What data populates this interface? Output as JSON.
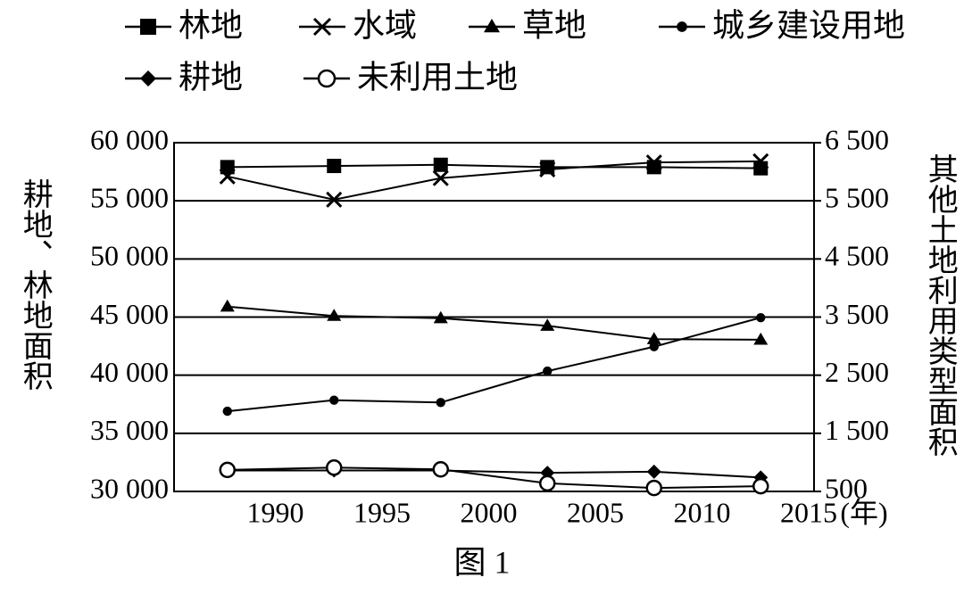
{
  "chart_data": {
    "type": "line",
    "title": "图 1",
    "x_label": "(年)",
    "y_label": "耕地、林地面积",
    "y2_label": "其他土地利用类型面积",
    "x": [
      1987.5,
      1992.5,
      1997.5,
      2002.5,
      2007.5,
      2012.5
    ],
    "xlim": [
      1985,
      2015
    ],
    "xticks": [
      1990,
      1995,
      2000,
      2005,
      2010,
      2015
    ],
    "ylim": [
      30000,
      60000
    ],
    "yticks": [
      {
        "value": 30000,
        "label": "30 000"
      },
      {
        "value": 35000,
        "label": "35 000"
      },
      {
        "value": 40000,
        "label": "40 000"
      },
      {
        "value": 45000,
        "label": "45 000"
      },
      {
        "value": 50000,
        "label": "50 000"
      },
      {
        "value": 55000,
        "label": "55 000"
      },
      {
        "value": 60000,
        "label": "60 000"
      }
    ],
    "y2lim": [
      500,
      6500
    ],
    "y2ticks": [
      500,
      {
        "value": 1500,
        "label": "1 500"
      },
      {
        "value": 2500,
        "label": "2 500"
      },
      {
        "value": 3500,
        "label": "3 500"
      },
      {
        "value": 4500,
        "label": "4 500"
      },
      {
        "value": 5500,
        "label": "5 500"
      },
      {
        "value": 6500,
        "label": "6 500"
      }
    ],
    "grid": true,
    "series": [
      {
        "name": "林地",
        "color": "#000000",
        "marker": "square",
        "values": [
          57900,
          58000,
          58100,
          57900,
          57900,
          57800
        ]
      },
      {
        "name": "水域",
        "color": "#000000",
        "marker": "x",
        "axis": "y2",
        "values": [
          5920,
          5520,
          5890,
          6040,
          6160,
          6180
        ]
      },
      {
        "name": "草地",
        "color": "#000000",
        "marker": "triangle",
        "axis": "y2",
        "values": [
          3680,
          3520,
          3480,
          3350,
          3120,
          3110
        ]
      },
      {
        "name": "城乡建设用地",
        "color": "#000000",
        "marker": "dot",
        "axis": "y2",
        "values": [
          1880,
          2070,
          2030,
          2570,
          2990,
          3490
        ]
      },
      {
        "name": "耕地",
        "color": "#000000",
        "marker": "diamond",
        "values": [
          31800,
          31800,
          31800,
          31600,
          31700,
          31200
        ]
      },
      {
        "name": "未利用土地",
        "color": "#000000",
        "marker": "circle-open",
        "axis": "y2",
        "values": [
          870,
          910,
          880,
          640,
          560,
          590
        ]
      }
    ]
  }
}
